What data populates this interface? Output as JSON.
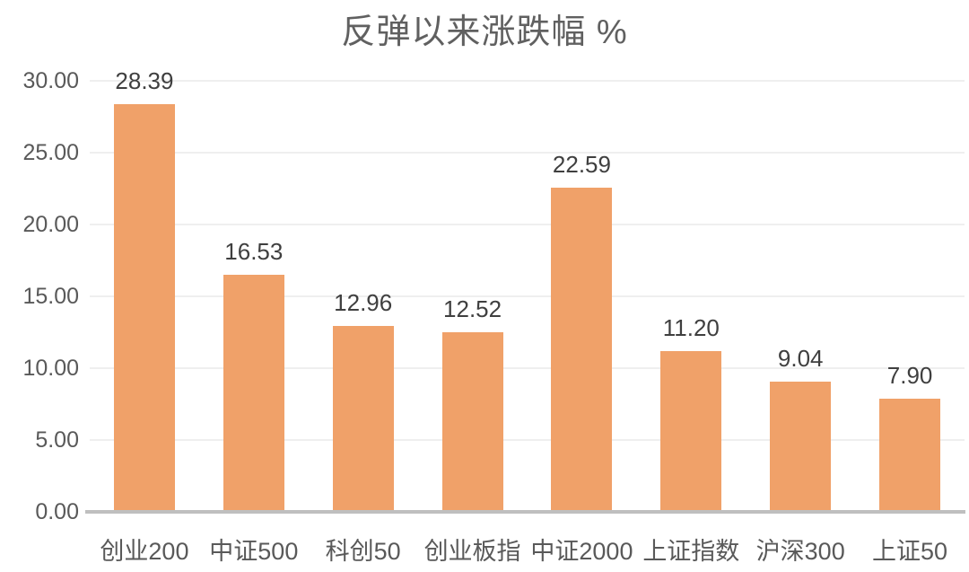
{
  "chart_data": {
    "type": "bar",
    "title": "反弹以来涨跌幅 %",
    "categories": [
      "创业200",
      "中证500",
      "科创50",
      "创业板指",
      "中证2000",
      "上证指数",
      "沪深300",
      "上证50"
    ],
    "values": [
      28.39,
      16.53,
      12.96,
      12.52,
      22.59,
      11.2,
      9.04,
      7.9
    ],
    "data_labels": [
      "28.39",
      "16.53",
      "12.96",
      "12.52",
      "22.59",
      "11.20",
      "9.04",
      "7.90"
    ],
    "xlabel": "",
    "ylabel": "",
    "ylim": [
      0,
      30
    ],
    "y_ticks": [
      0,
      5,
      10,
      15,
      20,
      25,
      30
    ],
    "y_tick_labels": [
      "0.00",
      "5.00",
      "10.00",
      "15.00",
      "20.00",
      "25.00",
      "30.00"
    ],
    "grid": "horizontal",
    "legend": "none",
    "colors": {
      "bar": "#F0A169",
      "title": "#606060",
      "axis_label": "#595959",
      "data_label": "#3F3F3F",
      "gridline": "#EFEFEF",
      "baseline": "#BFBFBF",
      "background": "#FFFFFF"
    }
  }
}
